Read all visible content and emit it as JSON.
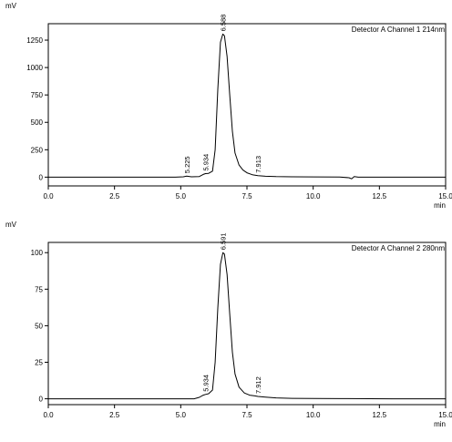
{
  "chart_data": [
    {
      "type": "line",
      "ylabel": "mV",
      "xlabel": "min",
      "annotation": "Detector A Channel 1 214nm",
      "xlim": [
        0,
        15
      ],
      "ylim": [
        -80,
        1400
      ],
      "xticks": [
        0,
        2.5,
        5,
        7.5,
        10,
        12.5,
        15
      ],
      "xtick_labels": [
        "0.0",
        "2.5",
        "5.0",
        "7.5",
        "10.0",
        "12.5",
        "15.0"
      ],
      "yticks": [
        0,
        250,
        500,
        750,
        1000,
        1250
      ],
      "ytick_labels": [
        "0",
        "250",
        "500",
        "750",
        "1000",
        "1250"
      ],
      "grid": false,
      "series": [
        {
          "values_note": "",
          "x": [
            0,
            4.8,
            5.1,
            5.225,
            5.4,
            5.7,
            5.85,
            5.934,
            6.05,
            6.2,
            6.3,
            6.4,
            6.5,
            6.588,
            6.65,
            6.75,
            6.85,
            6.95,
            7.05,
            7.2,
            7.35,
            7.5,
            7.7,
            7.913,
            8.2,
            8.6,
            9.2,
            10.0,
            11.0,
            11.35,
            11.45,
            11.55,
            11.7,
            12.0,
            13.0,
            15.0
          ],
          "y": [
            0,
            0,
            3,
            10,
            3,
            6,
            25,
            32,
            35,
            55,
            250,
            800,
            1230,
            1305,
            1290,
            1100,
            750,
            420,
            220,
            110,
            65,
            40,
            22,
            14,
            8,
            5,
            3,
            2,
            1,
            -5,
            -15,
            5,
            0,
            0,
            0,
            0
          ]
        }
      ],
      "peak_labels": [
        {
          "x": 5.225,
          "y": 10,
          "text": "5.225"
        },
        {
          "x": 5.934,
          "y": 32,
          "text": "5.934"
        },
        {
          "x": 6.588,
          "y": 1305,
          "text": "6.588"
        },
        {
          "x": 7.913,
          "y": 14,
          "text": "7.913"
        }
      ]
    },
    {
      "type": "line",
      "ylabel": "mV",
      "xlabel": "min",
      "annotation": "Detector A Channel 2 280nm",
      "xlim": [
        0,
        15
      ],
      "ylim": [
        -4,
        107
      ],
      "xticks": [
        0,
        2.5,
        5,
        7.5,
        10,
        12.5,
        15
      ],
      "xtick_labels": [
        "0.0",
        "2.5",
        "5.0",
        "7.5",
        "10.0",
        "12.5",
        "15.0"
      ],
      "yticks": [
        0,
        25,
        50,
        75,
        100
      ],
      "ytick_labels": [
        "0",
        "25",
        "50",
        "75",
        "100"
      ],
      "grid": false,
      "series": [
        {
          "x": [
            0,
            5.5,
            5.7,
            5.85,
            5.934,
            6.05,
            6.2,
            6.3,
            6.4,
            6.5,
            6.591,
            6.65,
            6.75,
            6.85,
            6.95,
            7.05,
            7.2,
            7.4,
            7.6,
            7.8,
            7.912,
            8.2,
            8.6,
            9.2,
            10.0,
            11.0,
            13.0,
            15.0
          ],
          "y": [
            0,
            0,
            1,
            2.5,
            3,
            3.5,
            6,
            25,
            62,
            92,
            100,
            99,
            85,
            58,
            32,
            17,
            8,
            4,
            2.5,
            2,
            1.6,
            1.2,
            0.6,
            0.3,
            0.2,
            0.1,
            0,
            0
          ]
        }
      ],
      "peak_labels": [
        {
          "x": 5.934,
          "y": 3,
          "text": "5.934"
        },
        {
          "x": 6.591,
          "y": 100,
          "text": "6.591"
        },
        {
          "x": 7.912,
          "y": 1.6,
          "text": "7.912"
        }
      ]
    }
  ]
}
